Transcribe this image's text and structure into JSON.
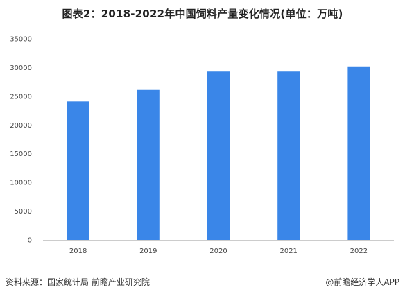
{
  "title": "图表2：2018-2022年中国饲料产量变化情况(单位：万吨)",
  "source": "资料来源：国家统计局 前瞻产业研究院",
  "credit": "@前瞻经济学人APP",
  "colors": {
    "bar": "#3a86e8",
    "axis": "#cccccc",
    "text": "#444444"
  },
  "chart_data": {
    "type": "bar",
    "title": "图表2：2018-2022年中国饲料产量变化情况(单位：万吨)",
    "xlabel": "",
    "ylabel": "",
    "categories": [
      "2018",
      "2019",
      "2020",
      "2021",
      "2022"
    ],
    "values": [
      24100,
      26100,
      29300,
      29300,
      30200
    ],
    "ylim": [
      0,
      35000
    ],
    "yticks": [
      0,
      5000,
      10000,
      15000,
      20000,
      25000,
      30000,
      35000
    ],
    "grid": false,
    "legend": "none"
  }
}
